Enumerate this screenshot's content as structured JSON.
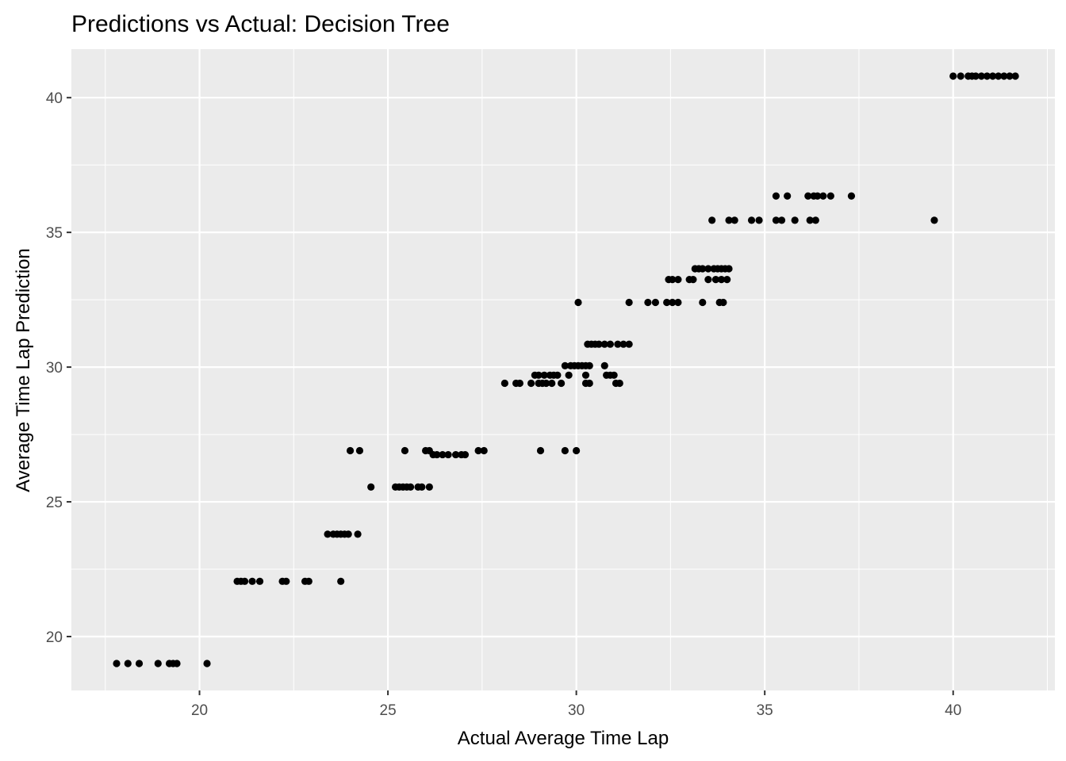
{
  "chart_data": {
    "type": "scatter",
    "title": "Predictions vs Actual: Decision Tree",
    "xlabel": "Actual Average Time Lap",
    "ylabel": "Average Time Lap Prediction",
    "xlim": [
      16.6,
      42.7
    ],
    "ylim": [
      18.0,
      41.8
    ],
    "x_ticks": [
      20,
      25,
      30,
      35,
      40
    ],
    "y_ticks": [
      20,
      25,
      30,
      35,
      40
    ],
    "x_tick_labels": [
      "20",
      "25",
      "30",
      "35",
      "40"
    ],
    "y_tick_labels": [
      "20",
      "25",
      "30",
      "35",
      "40"
    ],
    "grid": true,
    "colors": {
      "panel": "#ebebeb",
      "grid": "#ffffff",
      "point": "#000000",
      "tick_text": "#4d4d4d"
    },
    "points": [
      [
        17.8,
        19.0
      ],
      [
        18.1,
        19.0
      ],
      [
        18.4,
        19.0
      ],
      [
        18.9,
        19.0
      ],
      [
        19.2,
        19.0
      ],
      [
        19.3,
        19.0
      ],
      [
        19.4,
        19.0
      ],
      [
        20.2,
        19.0
      ],
      [
        21.0,
        22.05
      ],
      [
        21.1,
        22.05
      ],
      [
        21.2,
        22.05
      ],
      [
        21.4,
        22.05
      ],
      [
        21.6,
        22.05
      ],
      [
        22.2,
        22.05
      ],
      [
        22.3,
        22.05
      ],
      [
        22.8,
        22.05
      ],
      [
        22.9,
        22.05
      ],
      [
        23.75,
        22.05
      ],
      [
        23.4,
        23.8
      ],
      [
        23.55,
        23.8
      ],
      [
        23.65,
        23.8
      ],
      [
        23.75,
        23.8
      ],
      [
        23.85,
        23.8
      ],
      [
        23.95,
        23.8
      ],
      [
        24.2,
        23.8
      ],
      [
        24.0,
        26.9
      ],
      [
        24.25,
        26.9
      ],
      [
        24.55,
        25.55
      ],
      [
        25.2,
        25.55
      ],
      [
        25.3,
        25.55
      ],
      [
        25.4,
        25.55
      ],
      [
        25.5,
        25.55
      ],
      [
        25.6,
        25.55
      ],
      [
        25.8,
        25.55
      ],
      [
        25.9,
        25.55
      ],
      [
        26.1,
        25.55
      ],
      [
        25.45,
        26.9
      ],
      [
        26.0,
        26.9
      ],
      [
        26.1,
        26.9
      ],
      [
        27.4,
        26.9
      ],
      [
        27.55,
        26.9
      ],
      [
        26.2,
        26.75
      ],
      [
        26.3,
        26.75
      ],
      [
        26.45,
        26.75
      ],
      [
        26.6,
        26.75
      ],
      [
        26.8,
        26.75
      ],
      [
        26.95,
        26.75
      ],
      [
        27.05,
        26.75
      ],
      [
        28.1,
        29.4
      ],
      [
        28.4,
        29.4
      ],
      [
        28.5,
        29.4
      ],
      [
        28.8,
        29.4
      ],
      [
        29.0,
        29.4
      ],
      [
        29.1,
        29.4
      ],
      [
        29.2,
        29.4
      ],
      [
        29.35,
        29.4
      ],
      [
        29.6,
        29.4
      ],
      [
        28.9,
        29.7
      ],
      [
        29.0,
        29.7
      ],
      [
        29.15,
        29.7
      ],
      [
        29.3,
        29.7
      ],
      [
        29.4,
        29.7
      ],
      [
        29.5,
        29.7
      ],
      [
        29.8,
        29.7
      ],
      [
        29.05,
        26.9
      ],
      [
        29.7,
        26.9
      ],
      [
        30.0,
        26.9
      ],
      [
        29.7,
        30.05
      ],
      [
        29.85,
        30.05
      ],
      [
        29.95,
        30.05
      ],
      [
        30.05,
        30.05
      ],
      [
        30.15,
        30.05
      ],
      [
        30.25,
        30.05
      ],
      [
        30.35,
        30.05
      ],
      [
        30.75,
        30.05
      ],
      [
        30.25,
        29.7
      ],
      [
        30.8,
        29.7
      ],
      [
        30.9,
        29.7
      ],
      [
        31.0,
        29.7
      ],
      [
        30.25,
        29.4
      ],
      [
        30.35,
        29.4
      ],
      [
        31.05,
        29.4
      ],
      [
        31.15,
        29.4
      ],
      [
        30.3,
        30.85
      ],
      [
        30.4,
        30.85
      ],
      [
        30.5,
        30.85
      ],
      [
        30.6,
        30.85
      ],
      [
        30.75,
        30.85
      ],
      [
        30.9,
        30.85
      ],
      [
        31.1,
        30.85
      ],
      [
        31.25,
        30.85
      ],
      [
        31.4,
        30.85
      ],
      [
        30.05,
        32.4
      ],
      [
        31.4,
        32.4
      ],
      [
        31.9,
        32.4
      ],
      [
        32.1,
        32.4
      ],
      [
        32.4,
        32.4
      ],
      [
        32.55,
        32.4
      ],
      [
        32.7,
        32.4
      ],
      [
        33.35,
        32.4
      ],
      [
        33.8,
        32.4
      ],
      [
        33.9,
        32.4
      ],
      [
        32.45,
        33.25
      ],
      [
        32.55,
        33.25
      ],
      [
        32.7,
        33.25
      ],
      [
        33.0,
        33.25
      ],
      [
        33.1,
        33.25
      ],
      [
        33.5,
        33.25
      ],
      [
        33.7,
        33.25
      ],
      [
        33.85,
        33.25
      ],
      [
        34.0,
        33.25
      ],
      [
        33.15,
        33.65
      ],
      [
        33.25,
        33.65
      ],
      [
        33.35,
        33.65
      ],
      [
        33.5,
        33.65
      ],
      [
        33.65,
        33.65
      ],
      [
        33.75,
        33.65
      ],
      [
        33.85,
        33.65
      ],
      [
        33.95,
        33.65
      ],
      [
        34.05,
        33.65
      ],
      [
        33.6,
        35.45
      ],
      [
        34.05,
        35.45
      ],
      [
        34.2,
        35.45
      ],
      [
        34.65,
        35.45
      ],
      [
        34.85,
        35.45
      ],
      [
        35.3,
        35.45
      ],
      [
        35.45,
        35.45
      ],
      [
        35.8,
        35.45
      ],
      [
        36.2,
        35.45
      ],
      [
        36.35,
        35.45
      ],
      [
        39.5,
        35.45
      ],
      [
        35.3,
        36.35
      ],
      [
        35.6,
        36.35
      ],
      [
        36.15,
        36.35
      ],
      [
        36.3,
        36.35
      ],
      [
        36.4,
        36.35
      ],
      [
        36.55,
        36.35
      ],
      [
        36.75,
        36.35
      ],
      [
        37.3,
        36.35
      ],
      [
        40.0,
        40.8
      ],
      [
        40.2,
        40.8
      ],
      [
        40.4,
        40.8
      ],
      [
        40.5,
        40.8
      ],
      [
        40.6,
        40.8
      ],
      [
        40.75,
        40.8
      ],
      [
        40.9,
        40.8
      ],
      [
        41.05,
        40.8
      ],
      [
        41.2,
        40.8
      ],
      [
        41.35,
        40.8
      ],
      [
        41.5,
        40.8
      ],
      [
        41.65,
        40.8
      ]
    ]
  }
}
